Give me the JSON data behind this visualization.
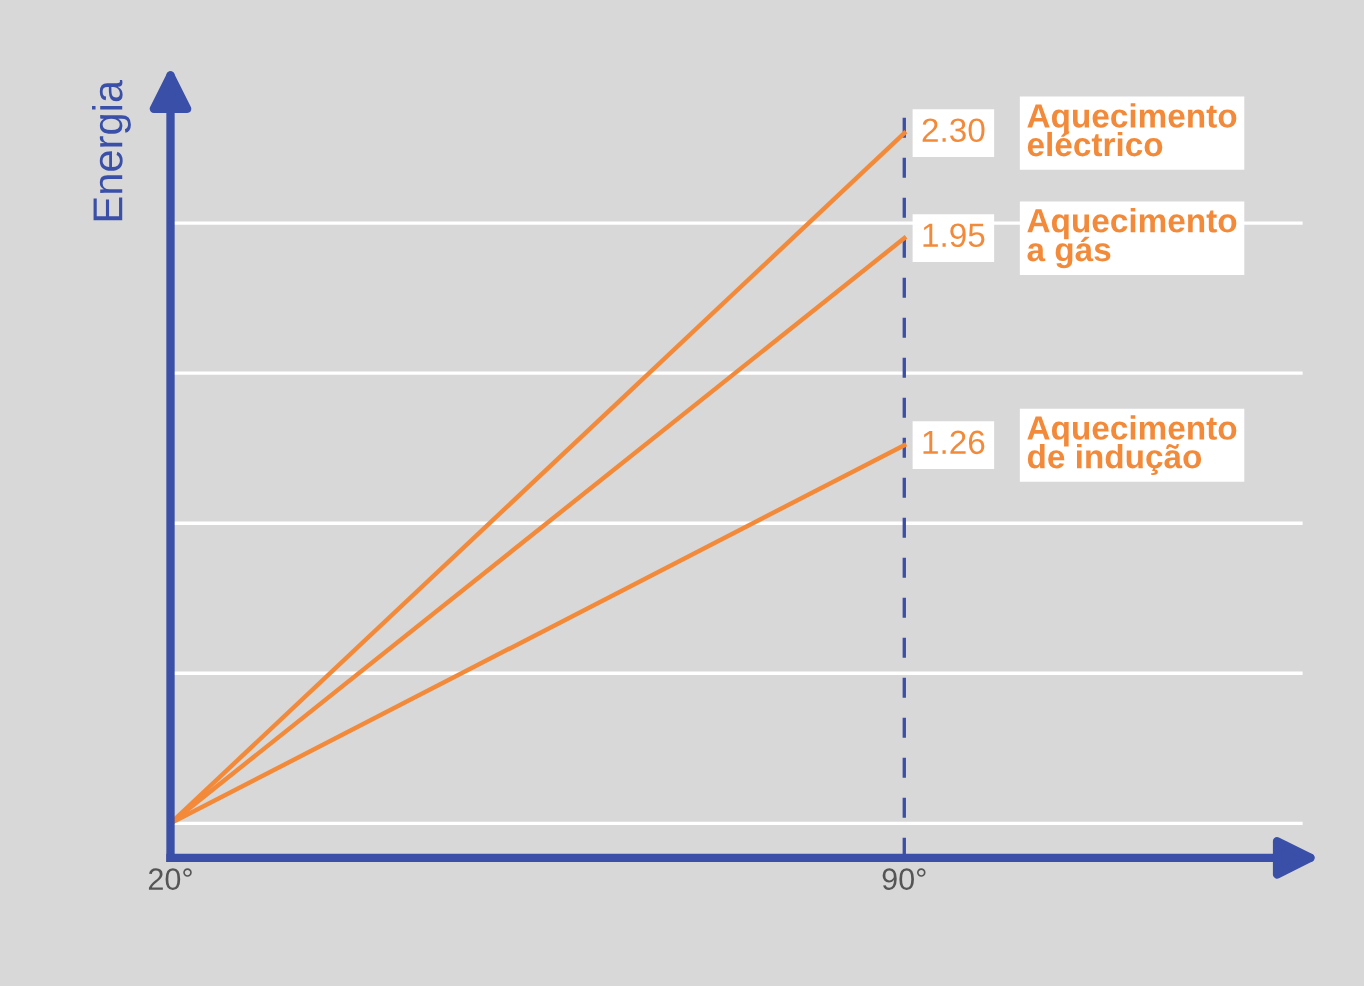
{
  "chart_data": {
    "type": "line",
    "ylabel": "Energia",
    "x": [
      20,
      90
    ],
    "series": [
      {
        "name": "Aquecimento\neléctrico",
        "color": "#f28a3a",
        "values": [
          0,
          2.3
        ],
        "value_labels": [
          null,
          "2.30"
        ]
      },
      {
        "name": "Aquecimento\na gás",
        "color": "#f28a3a",
        "values": [
          0,
          1.95
        ],
        "value_labels": [
          null,
          "1.95"
        ]
      },
      {
        "name": "Aquecimento\nde indução",
        "color": "#f28a3a",
        "values": [
          0,
          1.26
        ],
        "value_labels": [
          null,
          "1.26"
        ]
      }
    ],
    "xlim": [
      20,
      128
    ],
    "xticks": [
      {
        "value": 20,
        "label": "20°"
      },
      {
        "value": 90,
        "label": "90°"
      }
    ],
    "tick_labels": "x",
    "grid": "y",
    "legend": false,
    "marker": "none",
    "line_style": "solid",
    "ref_lines": [
      {
        "axis": "x",
        "value": 90,
        "color": "#3a4fa8",
        "line_style": "dashed"
      }
    ]
  }
}
